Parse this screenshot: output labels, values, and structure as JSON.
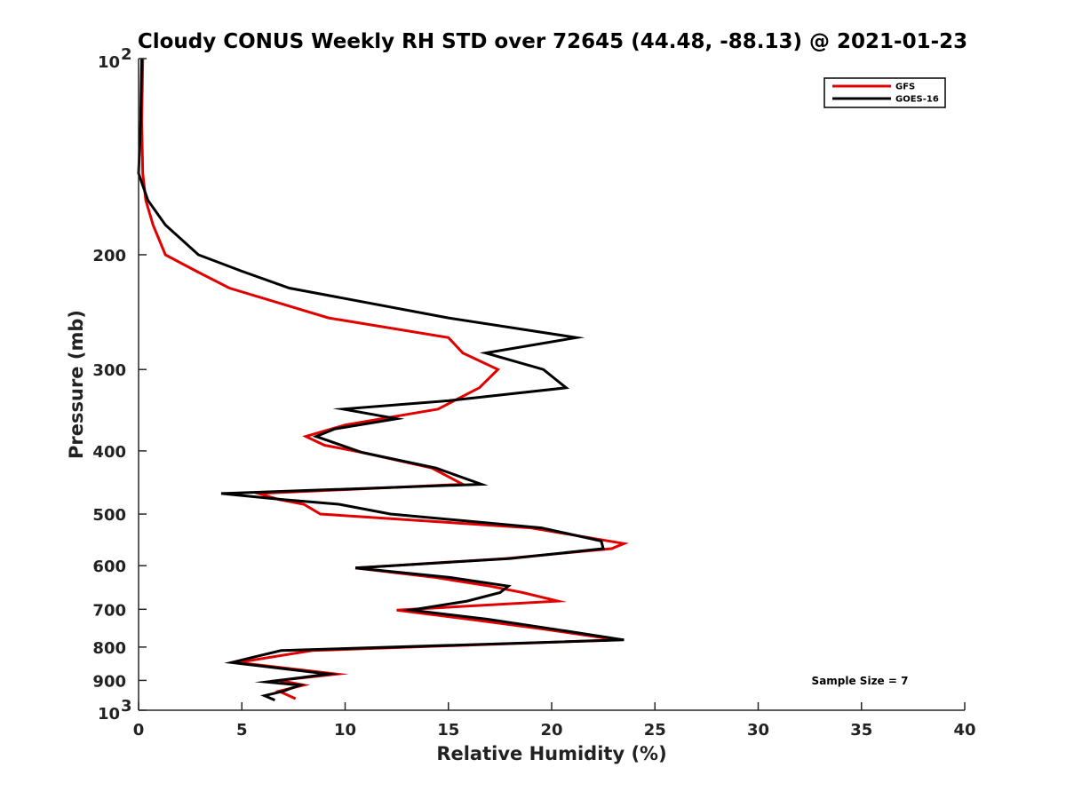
{
  "chart_data": {
    "type": "line",
    "title": "Cloudy CONUS Weekly RH STD over 72645 (44.48, -88.13) @ 2021-01-23",
    "xlabel": "Relative Humidity (%)",
    "ylabel": "Pressure (mb)",
    "xlim": [
      0,
      40
    ],
    "ylim": [
      100,
      1000
    ],
    "yscale": "log",
    "yreversed": true,
    "grid": false,
    "legend_position": "top-right",
    "xticks": [
      0,
      5,
      10,
      15,
      20,
      25,
      30,
      35,
      40
    ],
    "xtick_labels": [
      "0",
      "5",
      "10",
      "15",
      "20",
      "25",
      "30",
      "35",
      "40"
    ],
    "yticks": [
      200,
      300,
      400,
      500,
      600,
      700,
      800,
      900
    ],
    "ytick_labels": [
      "200",
      "300",
      "400",
      "500",
      "600",
      "700",
      "800",
      "900"
    ],
    "yticks_exp": [
      {
        "value": 100,
        "base": "10",
        "exp": "2"
      },
      {
        "value": 1000,
        "base": "10",
        "exp": "3"
      }
    ],
    "annotation": "Sample Size = 7",
    "series": [
      {
        "name": "GFS",
        "color": "#e00000",
        "points": [
          [
            0.2,
            100
          ],
          [
            0.15,
            125
          ],
          [
            0.2,
            150
          ],
          [
            0.35,
            165
          ],
          [
            0.7,
            180
          ],
          [
            1.3,
            200
          ],
          [
            2.8,
            212
          ],
          [
            4.4,
            225
          ],
          [
            9.2,
            250
          ],
          [
            15.0,
            268
          ],
          [
            15.7,
            283
          ],
          [
            17.4,
            300
          ],
          [
            16.5,
            320
          ],
          [
            14.5,
            345
          ],
          [
            10.0,
            365
          ],
          [
            8.1,
            380
          ],
          [
            9.0,
            392
          ],
          [
            10.8,
            402
          ],
          [
            14.2,
            425
          ],
          [
            15.7,
            450
          ],
          [
            5.8,
            465
          ],
          [
            6.8,
            475
          ],
          [
            8.0,
            483
          ],
          [
            8.8,
            500
          ],
          [
            19.0,
            525
          ],
          [
            23.5,
            555
          ],
          [
            22.9,
            565
          ],
          [
            17.8,
            585
          ],
          [
            10.5,
            605
          ],
          [
            14.3,
            625
          ],
          [
            17.0,
            645
          ],
          [
            18.6,
            660
          ],
          [
            20.3,
            680
          ],
          [
            12.5,
            702
          ],
          [
            16.0,
            725
          ],
          [
            19.5,
            750
          ],
          [
            23.2,
            780
          ],
          [
            8.4,
            810
          ],
          [
            4.8,
            845
          ],
          [
            9.6,
            880
          ],
          [
            6.8,
            900
          ],
          [
            8.0,
            915
          ],
          [
            6.8,
            935
          ],
          [
            7.6,
            960
          ]
        ]
      },
      {
        "name": "GOES-16",
        "color": "#000000",
        "points": [
          [
            0.15,
            100
          ],
          [
            0.1,
            125
          ],
          [
            0.0,
            150
          ],
          [
            0.45,
            165
          ],
          [
            1.3,
            180
          ],
          [
            2.9,
            200
          ],
          [
            5.0,
            212
          ],
          [
            7.3,
            225
          ],
          [
            15.0,
            250
          ],
          [
            21.2,
            268
          ],
          [
            16.8,
            283
          ],
          [
            19.6,
            300
          ],
          [
            20.7,
            320
          ],
          [
            15.0,
            335
          ],
          [
            9.9,
            345
          ],
          [
            12.5,
            357
          ],
          [
            9.5,
            370
          ],
          [
            8.6,
            380
          ],
          [
            10.8,
            402
          ],
          [
            14.4,
            425
          ],
          [
            16.6,
            450
          ],
          [
            4.0,
            465
          ],
          [
            7.0,
            475
          ],
          [
            9.7,
            483
          ],
          [
            12.2,
            500
          ],
          [
            19.5,
            525
          ],
          [
            22.4,
            550
          ],
          [
            22.5,
            565
          ],
          [
            18.0,
            585
          ],
          [
            10.5,
            605
          ],
          [
            15.0,
            625
          ],
          [
            17.9,
            645
          ],
          [
            17.5,
            660
          ],
          [
            15.9,
            680
          ],
          [
            13.2,
            702
          ],
          [
            16.9,
            725
          ],
          [
            20.0,
            750
          ],
          [
            23.5,
            780
          ],
          [
            6.9,
            810
          ],
          [
            5.5,
            830
          ],
          [
            4.5,
            845
          ],
          [
            9.2,
            880
          ],
          [
            6.2,
            905
          ],
          [
            7.8,
            915
          ],
          [
            7.0,
            935
          ],
          [
            6.1,
            950
          ],
          [
            6.6,
            965
          ]
        ]
      }
    ]
  }
}
